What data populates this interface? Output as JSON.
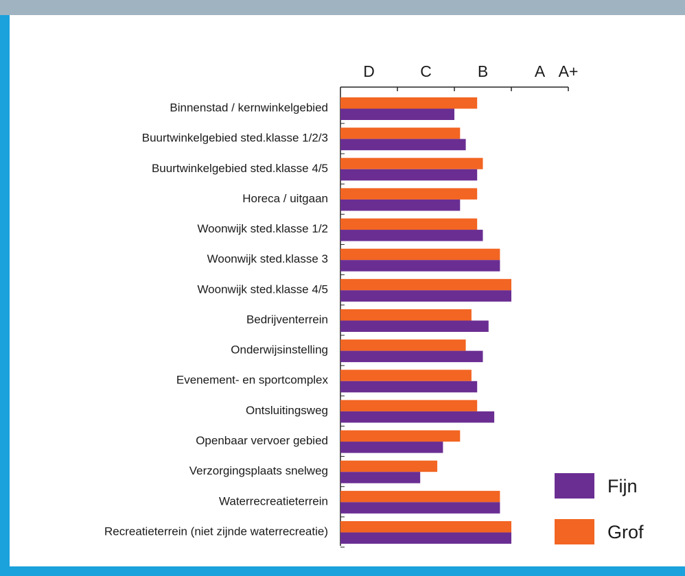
{
  "chart_data": {
    "type": "bar",
    "orientation": "horizontal",
    "categories": [
      "Binnenstad / kernwinkelgebied",
      "Buurtwinkelgebied sted.klasse 1/2/3",
      "Buurtwinkelgebied sted.klasse 4/5",
      "Horeca / uitgaan",
      "Woonwijk sted.klasse 1/2",
      "Woonwijk sted.klasse 3",
      "Woonwijk sted.klasse 4/5",
      "Bedrijventerrein",
      "Onderwijsinstelling",
      "Evenement- en sportcomplex",
      "Ontsluitingsweg",
      "Openbaar vervoer gebied",
      "Verzorgingsplaats snelweg",
      "Waterrecreatieterrein",
      "Recreatieterrein (niet zijnde waterrecreatie)"
    ],
    "series": [
      {
        "name": "Fijn",
        "color": "#6a2e92",
        "values": [
          2.0,
          2.2,
          2.4,
          2.1,
          2.5,
          2.8,
          3.0,
          2.6,
          2.5,
          2.4,
          2.7,
          1.8,
          1.4,
          2.8,
          3.0
        ]
      },
      {
        "name": "Grof",
        "color": "#f26522",
        "values": [
          2.4,
          2.1,
          2.5,
          2.4,
          2.4,
          2.8,
          3.0,
          2.3,
          2.2,
          2.3,
          2.4,
          2.1,
          1.7,
          2.8,
          3.0
        ]
      }
    ],
    "xlim": [
      0,
      4
    ],
    "xticks": [
      {
        "value": 0.5,
        "label": "D"
      },
      {
        "value": 1.5,
        "label": "C"
      },
      {
        "value": 2.5,
        "label": "B"
      },
      {
        "value": 3.5,
        "label": "A"
      },
      {
        "value": 4,
        "label": "A+"
      }
    ],
    "xtick_marks": [
      1,
      2,
      3,
      4
    ],
    "legend": "bottom-right"
  }
}
